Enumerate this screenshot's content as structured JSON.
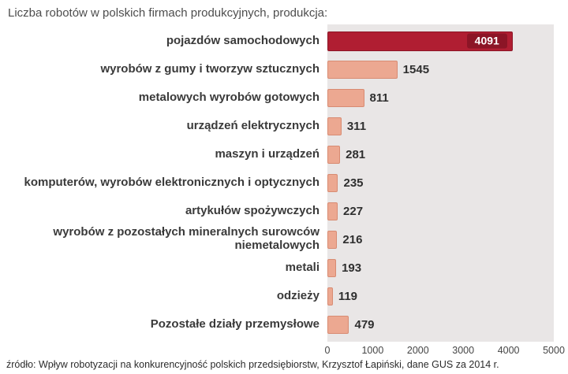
{
  "title": "Liczba robotów w polskich  firmach produkcyjnych, produkcja:",
  "source": "źródło: Wpływ robotyzacji na konkurencyjność polskich przedsiębiorstw, Krzysztof Łapiński, dane GUS za 2014 r.",
  "chart_data": {
    "type": "bar",
    "orientation": "horizontal",
    "title": "Liczba robotów w polskich firmach produkcyjnych, produkcja:",
    "xlabel": "",
    "ylabel": "",
    "xlim": [
      0,
      5000
    ],
    "x_ticks": [
      "0",
      "1000",
      "2000",
      "3000",
      "4000",
      "5000"
    ],
    "grid": false,
    "legend": false,
    "colors": {
      "highlight_bar": "#b01e32",
      "highlight_badge": "#8c1526",
      "bar": "#eca891",
      "bar_border": "#d88b72",
      "plot_bg": "#e9e6e6"
    },
    "rows": [
      {
        "label": "pojazdów samochodowych",
        "value": 4091
      },
      {
        "label": "wyrobów z gumy i tworzyw sztucznych",
        "value": 1545
      },
      {
        "label": "metalowych wyrobów gotowych",
        "value": 811
      },
      {
        "label": "urządzeń elektrycznych",
        "value": 311
      },
      {
        "label": "maszyn i urządzeń",
        "value": 281
      },
      {
        "label": "komputerów, wyrobów elektronicznych i optycznych",
        "value": 235
      },
      {
        "label": "artykułów spożywczych",
        "value": 227
      },
      {
        "label": "wyrobów z pozostałych mineralnych surowców niemetalowych",
        "value": 216
      },
      {
        "label": "metali",
        "value": 193
      },
      {
        "label": "odzieży",
        "value": 119
      },
      {
        "label": "Pozostałe działy przemysłowe",
        "value": 479
      }
    ]
  }
}
